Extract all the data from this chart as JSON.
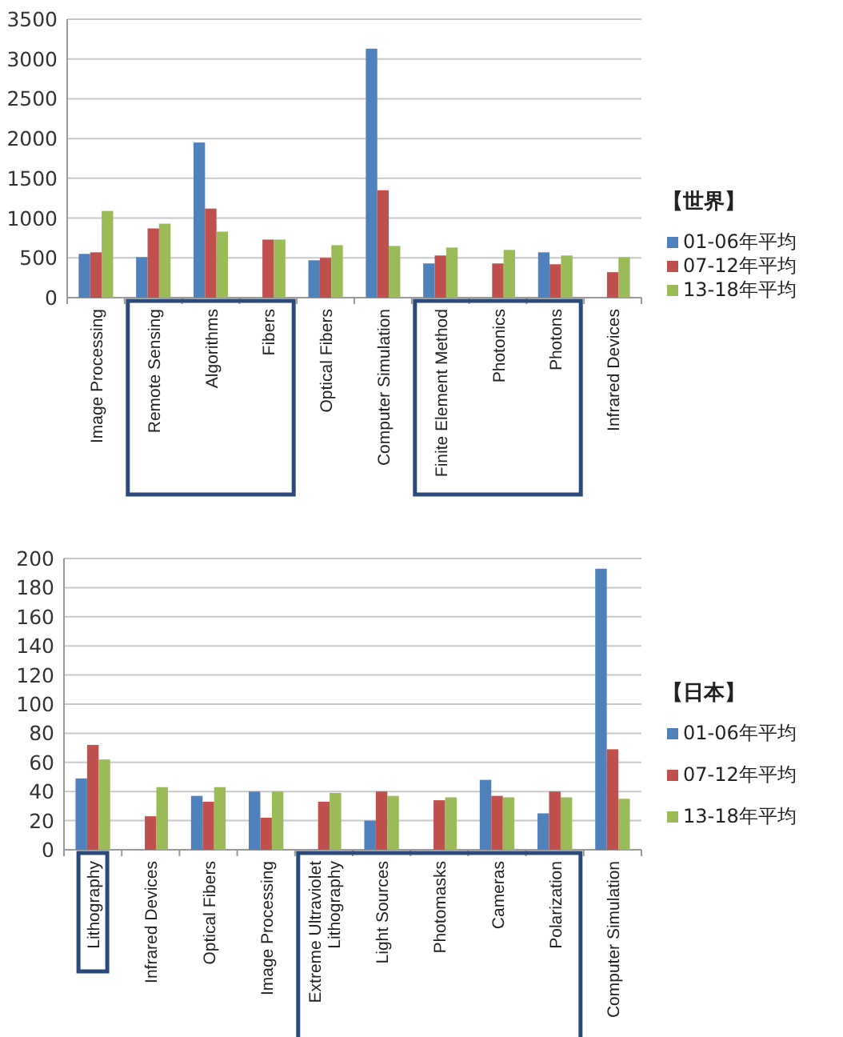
{
  "chart_data": [
    {
      "type": "bar",
      "categories": [
        "Image Processing",
        "Remote Sensing",
        "Algorithms",
        "Fibers",
        "Optical Fibers",
        "Computer Simulation",
        "Finite Element Method",
        "Photonics",
        "Photons",
        "Infrared Devices"
      ],
      "series": [
        {
          "name": "01-06年平均",
          "color": "#4f81bd",
          "values": [
            550,
            510,
            1950,
            null,
            470,
            3130,
            430,
            null,
            570,
            null
          ]
        },
        {
          "name": "07-12年平均",
          "color": "#c0504d",
          "values": [
            570,
            870,
            1120,
            730,
            500,
            1350,
            530,
            430,
            420,
            320
          ]
        },
        {
          "name": "13-18年平均",
          "color": "#9bbb59",
          "values": [
            1090,
            930,
            830,
            730,
            660,
            650,
            630,
            600,
            530,
            510
          ]
        }
      ],
      "ylim": [
        0,
        3500
      ],
      "yticks": [
        0,
        500,
        1000,
        1500,
        2000,
        2500,
        3000,
        3500
      ],
      "grid": "y",
      "legend": "right",
      "legend_title": "【世界】"
    },
    {
      "type": "bar",
      "categories": [
        "Lithography",
        "Infrared Devices",
        "Optical Fibers",
        "Image Processing",
        "Extreme Ultraviolet Lithography",
        "Light Sources",
        "Photomasks",
        "Cameras",
        "Polarization",
        "Computer Simulation"
      ],
      "series": [
        {
          "name": "01-06年平均",
          "color": "#4f81bd",
          "values": [
            49,
            null,
            37,
            40,
            null,
            20,
            null,
            48,
            25,
            193
          ]
        },
        {
          "name": "07-12年平均",
          "color": "#c0504d",
          "values": [
            72,
            23,
            33,
            22,
            33,
            40,
            34,
            37,
            40,
            69
          ]
        },
        {
          "name": "13-18年平均",
          "color": "#9bbb59",
          "values": [
            62,
            43,
            43,
            40,
            39,
            37,
            36,
            36,
            36,
            35
          ]
        }
      ],
      "ylim": [
        0,
        200
      ],
      "yticks": [
        0,
        20,
        40,
        60,
        80,
        100,
        120,
        140,
        160,
        180,
        200
      ],
      "grid": "y",
      "legend": "right",
      "legend_title": "【日本】"
    }
  ]
}
